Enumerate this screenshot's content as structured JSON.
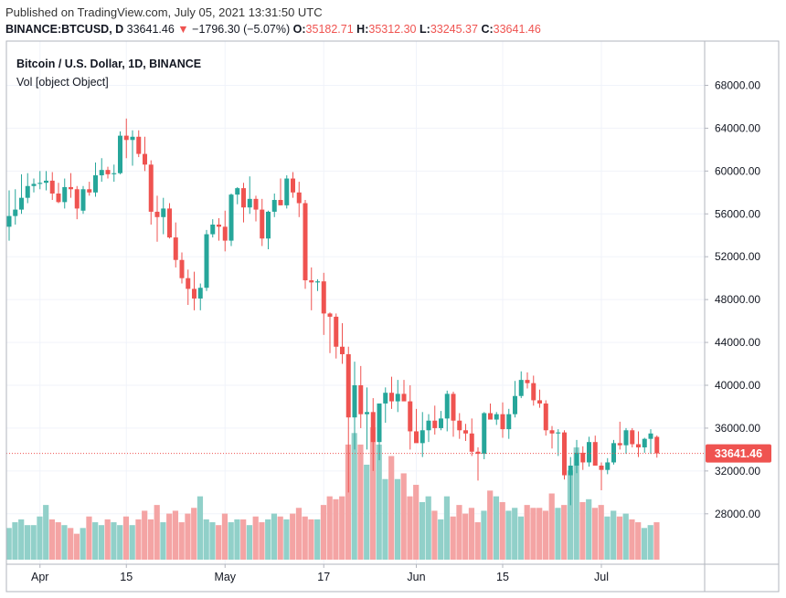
{
  "header": {
    "published": "Published on TradingView.com, July 05, 2021 13:31:50 UTC",
    "symbol": "BINANCE:BTCUSD, D",
    "last": "33641.46",
    "arrow": "▼",
    "change": "−1796.30 (−5.07%)",
    "o_label": "O:",
    "o_value": "35182.71",
    "h_label": "H:",
    "h_value": "35312.30",
    "l_label": "L:",
    "l_value": "33245.37",
    "c_label": "C:",
    "c_value": "33641.46"
  },
  "colors": {
    "up": "#26a69a",
    "down": "#ef5350",
    "vol_up": "#91d0c9",
    "vol_down": "#f4a4a4",
    "grid": "#f0f3fa",
    "axis": "#b2b5be",
    "price_line": "#ef5350"
  },
  "chart_data": {
    "type": "candlestick",
    "title": "Bitcoin / U.S. Dollar, 1D, BINANCE",
    "volume_label": "Vol [object Object]",
    "last_price_label": "33641.46",
    "ylim": [
      25000,
      70000
    ],
    "yticks": [
      "28000.00",
      "32000.00",
      "36000.00",
      "40000.00",
      "44000.00",
      "48000.00",
      "52000.00",
      "56000.00",
      "60000.00",
      "64000.00",
      "68000.00"
    ],
    "xticks": [
      {
        "label": "Apr",
        "index": 5
      },
      {
        "label": "15",
        "index": 19
      },
      {
        "label": "May",
        "index": 35
      },
      {
        "label": "17",
        "index": 51
      },
      {
        "label": "Jun",
        "index": 66
      },
      {
        "label": "15",
        "index": 80
      },
      {
        "label": "Jul",
        "index": 96
      }
    ],
    "candles": [
      {
        "o": 54800,
        "h": 58200,
        "l": 53500,
        "c": 55800
      },
      {
        "o": 55800,
        "h": 58300,
        "l": 55000,
        "c": 56400
      },
      {
        "o": 56400,
        "h": 59700,
        "l": 56000,
        "c": 57500
      },
      {
        "o": 57500,
        "h": 59800,
        "l": 57000,
        "c": 58600
      },
      {
        "o": 58600,
        "h": 59300,
        "l": 58000,
        "c": 58800
      },
      {
        "o": 58800,
        "h": 60000,
        "l": 58300,
        "c": 58900
      },
      {
        "o": 58900,
        "h": 60000,
        "l": 58200,
        "c": 59100
      },
      {
        "o": 59100,
        "h": 59900,
        "l": 57300,
        "c": 57900
      },
      {
        "o": 57900,
        "h": 58900,
        "l": 57000,
        "c": 57100
      },
      {
        "o": 57100,
        "h": 59300,
        "l": 56500,
        "c": 58500
      },
      {
        "o": 58500,
        "h": 59800,
        "l": 57500,
        "c": 58300
      },
      {
        "o": 58300,
        "h": 58600,
        "l": 55500,
        "c": 56500
      },
      {
        "o": 56300,
        "h": 58600,
        "l": 56000,
        "c": 58300
      },
      {
        "o": 58300,
        "h": 59000,
        "l": 57700,
        "c": 58000
      },
      {
        "o": 58000,
        "h": 60800,
        "l": 57600,
        "c": 59600
      },
      {
        "o": 59600,
        "h": 61200,
        "l": 59000,
        "c": 60100
      },
      {
        "o": 60100,
        "h": 60400,
        "l": 59300,
        "c": 59700
      },
      {
        "o": 59700,
        "h": 60600,
        "l": 59000,
        "c": 59800
      },
      {
        "o": 59800,
        "h": 63700,
        "l": 59700,
        "c": 63300
      },
      {
        "o": 63300,
        "h": 64900,
        "l": 61200,
        "c": 62900
      },
      {
        "o": 62900,
        "h": 63800,
        "l": 60500,
        "c": 63200
      },
      {
        "o": 63200,
        "h": 63800,
        "l": 61300,
        "c": 61600
      },
      {
        "o": 61600,
        "h": 63200,
        "l": 60000,
        "c": 60600
      },
      {
        "o": 60600,
        "h": 61000,
        "l": 55000,
        "c": 56200
      },
      {
        "o": 56200,
        "h": 57700,
        "l": 53400,
        "c": 55700
      },
      {
        "o": 55700,
        "h": 57500,
        "l": 54100,
        "c": 56500
      },
      {
        "o": 56500,
        "h": 57000,
        "l": 53700,
        "c": 53800
      },
      {
        "o": 53800,
        "h": 55200,
        "l": 51000,
        "c": 51700
      },
      {
        "o": 51700,
        "h": 52400,
        "l": 49500,
        "c": 50000
      },
      {
        "o": 50000,
        "h": 50800,
        "l": 47500,
        "c": 49000
      },
      {
        "o": 49000,
        "h": 50600,
        "l": 47000,
        "c": 48100
      },
      {
        "o": 48100,
        "h": 49500,
        "l": 47000,
        "c": 49100
      },
      {
        "o": 49100,
        "h": 54500,
        "l": 48800,
        "c": 54100
      },
      {
        "o": 54100,
        "h": 55500,
        "l": 53800,
        "c": 55000
      },
      {
        "o": 55000,
        "h": 55600,
        "l": 53500,
        "c": 54800
      },
      {
        "o": 54800,
        "h": 56300,
        "l": 52500,
        "c": 53500
      },
      {
        "o": 53500,
        "h": 57900,
        "l": 53000,
        "c": 57800
      },
      {
        "o": 57800,
        "h": 58500,
        "l": 56900,
        "c": 58400
      },
      {
        "o": 58400,
        "h": 58900,
        "l": 55200,
        "c": 56600
      },
      {
        "o": 56600,
        "h": 59500,
        "l": 56000,
        "c": 57400
      },
      {
        "o": 57400,
        "h": 57700,
        "l": 55300,
        "c": 56400
      },
      {
        "o": 56400,
        "h": 57400,
        "l": 53000,
        "c": 53700
      },
      {
        "o": 53700,
        "h": 56300,
        "l": 52700,
        "c": 56200
      },
      {
        "o": 56200,
        "h": 57900,
        "l": 55700,
        "c": 57300
      },
      {
        "o": 57300,
        "h": 59300,
        "l": 56800,
        "c": 56800
      },
      {
        "o": 56800,
        "h": 59600,
        "l": 56500,
        "c": 59300
      },
      {
        "o": 59300,
        "h": 59900,
        "l": 57500,
        "c": 58000
      },
      {
        "o": 58000,
        "h": 59000,
        "l": 55700,
        "c": 57000
      },
      {
        "o": 57000,
        "h": 57300,
        "l": 49000,
        "c": 49800
      },
      {
        "o": 49800,
        "h": 51000,
        "l": 47000,
        "c": 49600
      },
      {
        "o": 49600,
        "h": 49900,
        "l": 48800,
        "c": 49700
      },
      {
        "o": 49700,
        "h": 50500,
        "l": 44700,
        "c": 46700
      },
      {
        "o": 46700,
        "h": 46800,
        "l": 43000,
        "c": 46400
      },
      {
        "o": 46400,
        "h": 46700,
        "l": 42500,
        "c": 43600
      },
      {
        "o": 43600,
        "h": 45800,
        "l": 42000,
        "c": 42900
      },
      {
        "o": 42900,
        "h": 43600,
        "l": 30000,
        "c": 37000
      },
      {
        "o": 37000,
        "h": 42200,
        "l": 34000,
        "c": 40000
      },
      {
        "o": 40000,
        "h": 41800,
        "l": 36000,
        "c": 37300
      },
      {
        "o": 37300,
        "h": 39800,
        "l": 34000,
        "c": 37500
      },
      {
        "o": 37500,
        "h": 38800,
        "l": 32000,
        "c": 34700
      },
      {
        "o": 34700,
        "h": 38300,
        "l": 33000,
        "c": 38300
      },
      {
        "o": 38300,
        "h": 39800,
        "l": 36500,
        "c": 39300
      },
      {
        "o": 39300,
        "h": 40800,
        "l": 37800,
        "c": 38500
      },
      {
        "o": 38500,
        "h": 40500,
        "l": 37500,
        "c": 39200
      },
      {
        "o": 39200,
        "h": 40500,
        "l": 38700,
        "c": 38500
      },
      {
        "o": 38500,
        "h": 40000,
        "l": 34000,
        "c": 35700
      },
      {
        "o": 35700,
        "h": 37800,
        "l": 34900,
        "c": 34600
      },
      {
        "o": 34600,
        "h": 37500,
        "l": 33300,
        "c": 35800
      },
      {
        "o": 35800,
        "h": 37300,
        "l": 34700,
        "c": 36700
      },
      {
        "o": 36700,
        "h": 38100,
        "l": 35400,
        "c": 36000
      },
      {
        "o": 36000,
        "h": 37600,
        "l": 35800,
        "c": 36900
      },
      {
        "o": 36900,
        "h": 39500,
        "l": 35700,
        "c": 39200
      },
      {
        "o": 39200,
        "h": 39400,
        "l": 35200,
        "c": 36700
      },
      {
        "o": 36700,
        "h": 37400,
        "l": 35000,
        "c": 35800
      },
      {
        "o": 35800,
        "h": 36400,
        "l": 34800,
        "c": 35500
      },
      {
        "o": 35500,
        "h": 36900,
        "l": 33400,
        "c": 33800
      },
      {
        "o": 33800,
        "h": 34200,
        "l": 31100,
        "c": 33600
      },
      {
        "o": 33600,
        "h": 37500,
        "l": 33100,
        "c": 37400
      },
      {
        "o": 37400,
        "h": 38300,
        "l": 36800,
        "c": 36800
      },
      {
        "o": 36800,
        "h": 37500,
        "l": 36300,
        "c": 37300
      },
      {
        "o": 37300,
        "h": 38400,
        "l": 35100,
        "c": 35900
      },
      {
        "o": 35900,
        "h": 37800,
        "l": 35000,
        "c": 37300
      },
      {
        "o": 37300,
        "h": 40400,
        "l": 37000,
        "c": 39000
      },
      {
        "o": 39000,
        "h": 41300,
        "l": 38800,
        "c": 40500
      },
      {
        "o": 40500,
        "h": 41200,
        "l": 39700,
        "c": 40200
      },
      {
        "o": 40200,
        "h": 40900,
        "l": 38100,
        "c": 38600
      },
      {
        "o": 38600,
        "h": 39600,
        "l": 37900,
        "c": 38300
      },
      {
        "o": 38300,
        "h": 38600,
        "l": 35300,
        "c": 35800
      },
      {
        "o": 35800,
        "h": 36200,
        "l": 34100,
        "c": 35500
      },
      {
        "o": 35500,
        "h": 35900,
        "l": 33400,
        "c": 35600
      },
      {
        "o": 35600,
        "h": 35800,
        "l": 31200,
        "c": 31600
      },
      {
        "o": 31600,
        "h": 33300,
        "l": 28800,
        "c": 32500
      },
      {
        "o": 32500,
        "h": 34900,
        "l": 31800,
        "c": 33700
      },
      {
        "o": 33700,
        "h": 34300,
        "l": 32100,
        "c": 32800
      },
      {
        "o": 32800,
        "h": 35200,
        "l": 32400,
        "c": 34700
      },
      {
        "o": 34700,
        "h": 35300,
        "l": 32800,
        "c": 32500
      },
      {
        "o": 32500,
        "h": 32800,
        "l": 30200,
        "c": 32100
      },
      {
        "o": 32100,
        "h": 33200,
        "l": 31700,
        "c": 32800
      },
      {
        "o": 32800,
        "h": 34900,
        "l": 32600,
        "c": 34600
      },
      {
        "o": 34600,
        "h": 36600,
        "l": 34000,
        "c": 34400
      },
      {
        "o": 34400,
        "h": 36000,
        "l": 33600,
        "c": 35800
      },
      {
        "o": 35800,
        "h": 36000,
        "l": 34200,
        "c": 34500
      },
      {
        "o": 34500,
        "h": 35700,
        "l": 33300,
        "c": 34200
      },
      {
        "o": 34200,
        "h": 35100,
        "l": 33700,
        "c": 35000
      },
      {
        "o": 35000,
        "h": 35900,
        "l": 33600,
        "c": 35500
      },
      {
        "o": 35182.71,
        "h": 35312.3,
        "l": 33245.37,
        "c": 33641.46
      }
    ],
    "volume": [
      11,
      13,
      14,
      12,
      12,
      15,
      19,
      14,
      13,
      12,
      11,
      9,
      11,
      15,
      13,
      12,
      14,
      13,
      12,
      15,
      12,
      14,
      17,
      14,
      19,
      13,
      16,
      17,
      13,
      16,
      18,
      22,
      14,
      13,
      12,
      16,
      13,
      14,
      14,
      12,
      15,
      13,
      14,
      16,
      15,
      14,
      16,
      18,
      15,
      14,
      14,
      19,
      22,
      21,
      22,
      40,
      44,
      40,
      33,
      46,
      40,
      28,
      36,
      28,
      30,
      22,
      26,
      20,
      22,
      17,
      14,
      22,
      15,
      19,
      16,
      18,
      13,
      17,
      24,
      22,
      20,
      17,
      18,
      15,
      19,
      18,
      18,
      17,
      23,
      18,
      19,
      31,
      39,
      20,
      21,
      18,
      19,
      15,
      17,
      15,
      16,
      14,
      13,
      11,
      12,
      13
    ]
  }
}
